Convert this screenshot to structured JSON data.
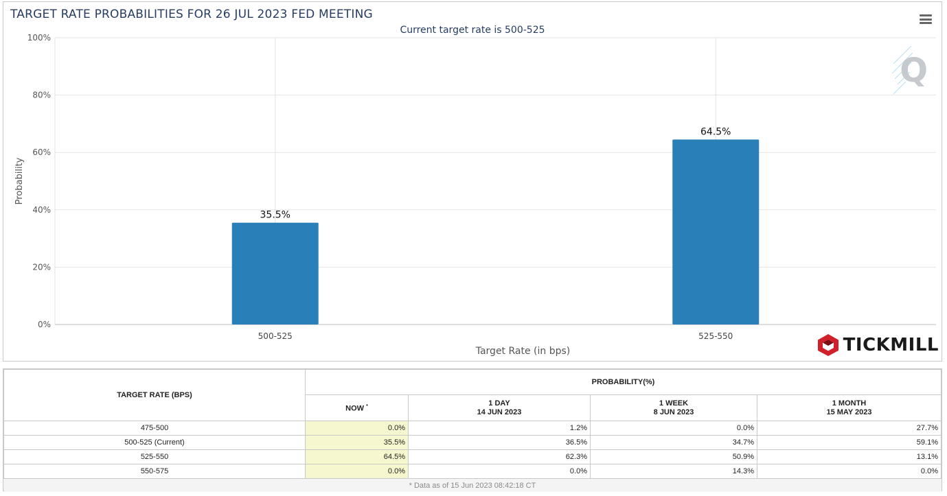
{
  "chart_data": {
    "type": "bar",
    "title": "TARGET RATE PROBABILITIES FOR 26 JUL 2023 FED MEETING",
    "subtitle": "Current target rate is 500-525",
    "xlabel": "Target Rate (in bps)",
    "ylabel": "Probability",
    "categories": [
      "500-525",
      "525-550"
    ],
    "values": [
      35.5,
      64.5
    ],
    "data_labels": [
      "35.5%",
      "64.5%"
    ],
    "ylim": [
      0,
      100
    ],
    "yticks": [
      "0%",
      "20%",
      "40%",
      "60%",
      "80%",
      "100%"
    ],
    "grid": true,
    "bar_color": "#2980b9"
  },
  "brand": {
    "name": "TICKMILL",
    "color": "#d0202a"
  },
  "menu_icon": "hamburger-icon",
  "table": {
    "col_rate_header": "TARGET RATE (BPS)",
    "prob_header": "PROBABILITY(%)",
    "now_label": "NOW",
    "now_mark": "*",
    "columns": [
      {
        "label": "1 DAY",
        "date": "14 JUN 2023"
      },
      {
        "label": "1 WEEK",
        "date": "8 JUN 2023"
      },
      {
        "label": "1 MONTH",
        "date": "15 MAY 2023"
      }
    ],
    "rows": [
      {
        "rate": "475-500",
        "now": "0.0%",
        "d1": "1.2%",
        "w1": "0.0%",
        "m1": "27.7%"
      },
      {
        "rate": "500-525 (Current)",
        "now": "35.5%",
        "d1": "36.5%",
        "w1": "34.7%",
        "m1": "59.1%"
      },
      {
        "rate": "525-550",
        "now": "64.5%",
        "d1": "62.3%",
        "w1": "50.9%",
        "m1": "13.1%"
      },
      {
        "rate": "550-575",
        "now": "0.0%",
        "d1": "0.0%",
        "w1": "14.3%",
        "m1": "0.0%"
      }
    ],
    "footnote": "* Data as of 15 Jun 2023 08:42:18 CT"
  }
}
